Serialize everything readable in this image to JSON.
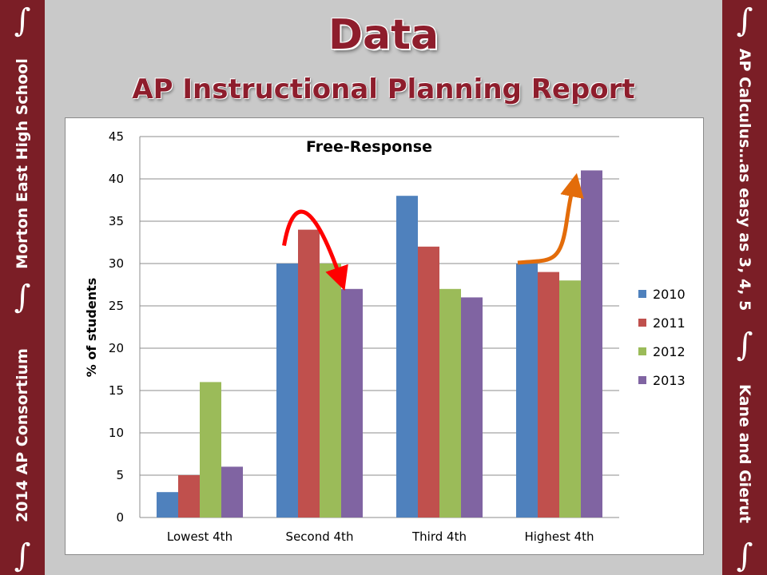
{
  "slide": {
    "title": "Data",
    "subtitle": "AP Instructional Planning Report",
    "left_bar": {
      "top_text": "Morton East High School",
      "bottom_text": "2014 AP Consortium",
      "symbol": "∫"
    },
    "right_bar": {
      "top_text": "AP Calculus…as easy as 3, 4, 5",
      "bottom_text": "Kane and Gierut",
      "symbol": "∫"
    },
    "colors": {
      "maroon": "#7b1e26",
      "title": "#8e1d2c",
      "background": "#c9c9c9"
    }
  },
  "chart_data": {
    "type": "bar",
    "title": "Free-Response",
    "xlabel": "",
    "ylabel": "% of students",
    "ylim": [
      0,
      45
    ],
    "yticks": [
      0,
      5,
      10,
      15,
      20,
      25,
      30,
      35,
      40,
      45
    ],
    "grid": true,
    "legend": "right",
    "categories": [
      "Lowest 4th",
      "Second 4th",
      "Third 4th",
      "Highest 4th"
    ],
    "series": [
      {
        "name": "2010",
        "color": "#4f81bd",
        "values": [
          3,
          30,
          38,
          30
        ]
      },
      {
        "name": "2011",
        "color": "#c0504d",
        "values": [
          5,
          34,
          32,
          29
        ]
      },
      {
        "name": "2012",
        "color": "#9bbb59",
        "values": [
          16,
          30,
          27,
          28
        ]
      },
      {
        "name": "2013",
        "color": "#8064a2",
        "values": [
          6,
          27,
          26,
          41
        ]
      }
    ],
    "annotations": [
      {
        "type": "curved-arrow-down",
        "color": "#ff0000",
        "category": "Second 4th",
        "from_value": 34,
        "to_value": 27
      },
      {
        "type": "curved-arrow-up",
        "color": "#e36c0a",
        "category": "Highest 4th",
        "from_value": 30,
        "to_value": 41
      }
    ]
  }
}
